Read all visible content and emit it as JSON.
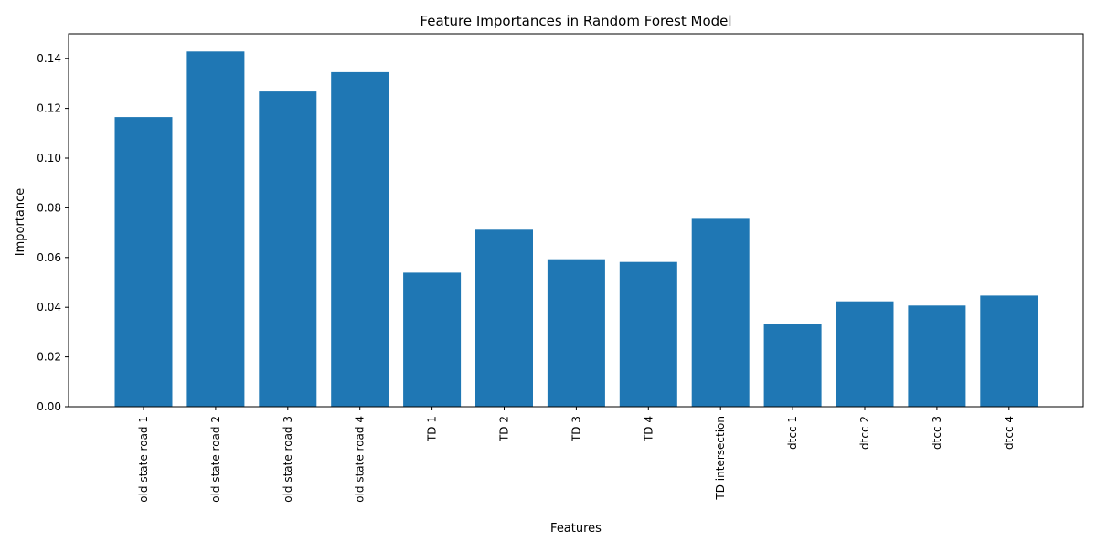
{
  "chart_data": {
    "type": "bar",
    "title": "Feature Importances in Random Forest Model",
    "xlabel": "Features",
    "ylabel": "Importance",
    "categories": [
      "old state road 1",
      "old state road 2",
      "old state road 3",
      "old state road 4",
      "TD 1",
      "TD 2",
      "TD 3",
      "TD 4",
      "TD intersection",
      "dtcc 1",
      "dtcc 2",
      "dtcc 3",
      "dtcc 4"
    ],
    "values": [
      0.1165,
      0.1429,
      0.1268,
      0.1346,
      0.0539,
      0.0712,
      0.0593,
      0.0582,
      0.0756,
      0.0333,
      0.0424,
      0.0407,
      0.0447
    ],
    "ylim": [
      0,
      0.15
    ],
    "yticks": [
      "0.00",
      "0.02",
      "0.04",
      "0.06",
      "0.08",
      "0.10",
      "0.12",
      "0.14"
    ],
    "grid": false,
    "bar_color": "#1f77b4"
  }
}
